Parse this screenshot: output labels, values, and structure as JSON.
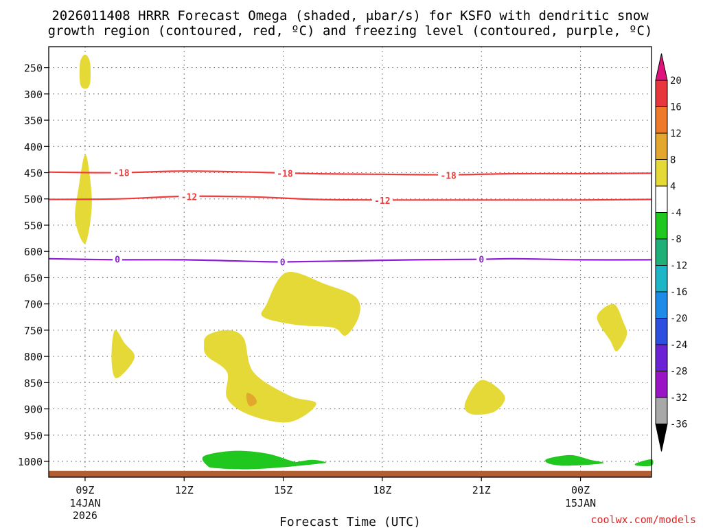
{
  "chart_data": {
    "type": "time-height-section",
    "title_line1": "2026011408 HRRR Forecast Omega (shaded, μbar/s) for KSFO with dendritic snow",
    "title_line2": "growth region (contoured, red, ºC) and freezing level (contoured, purple, ºC)",
    "xlabel": "Forecast Time (UTC)",
    "credit": "coolwx.com/models",
    "y_axis": {
      "range": [
        1030,
        210
      ],
      "ticks": [
        250,
        300,
        350,
        400,
        450,
        500,
        550,
        600,
        650,
        700,
        750,
        800,
        850,
        900,
        950,
        1000
      ],
      "tick_labels": [
        "250",
        "300",
        "350",
        "400",
        "450",
        "500",
        "550",
        "600",
        "650",
        "700",
        "750",
        "800",
        "850",
        "900",
        "950",
        "1000"
      ]
    },
    "x_axis": {
      "range_hours": [
        7.9,
        26.15
      ],
      "ticks": [
        {
          "h": 9,
          "l1": "09Z",
          "l2": "14JAN",
          "l3": "2026"
        },
        {
          "h": 12,
          "l1": "12Z",
          "l2": "",
          "l3": ""
        },
        {
          "h": 15,
          "l1": "15Z",
          "l2": "",
          "l3": ""
        },
        {
          "h": 18,
          "l1": "18Z",
          "l2": "",
          "l3": ""
        },
        {
          "h": 21,
          "l1": "21Z",
          "l2": "",
          "l3": ""
        },
        {
          "h": 24,
          "l1": "00Z",
          "l2": "15JAN",
          "l3": ""
        }
      ]
    },
    "colorbar": {
      "labels": [
        "20",
        "16",
        "12",
        "8",
        "4",
        "-4",
        "-8",
        "-12",
        "-16",
        "-20",
        "-24",
        "-28",
        "-32",
        "-36"
      ],
      "bins": [
        {
          "from": 16,
          "to": 20,
          "color": "#e8373c"
        },
        {
          "from": 12,
          "to": 16,
          "color": "#ec7a2a"
        },
        {
          "from": 8,
          "to": 12,
          "color": "#e3a72d"
        },
        {
          "from": 4,
          "to": 8,
          "color": "#e5d937"
        },
        {
          "from": -4,
          "to": 4,
          "color": "#ffffff"
        },
        {
          "from": -8,
          "to": -4,
          "color": "#1fc71f"
        },
        {
          "from": -12,
          "to": -8,
          "color": "#1fb07a"
        },
        {
          "from": -16,
          "to": -12,
          "color": "#1cb6c6"
        },
        {
          "from": -20,
          "to": -16,
          "color": "#1e8be6"
        },
        {
          "from": -24,
          "to": -20,
          "color": "#2d4fe0"
        },
        {
          "from": -28,
          "to": -24,
          "color": "#6a22d4"
        },
        {
          "from": -32,
          "to": -28,
          "color": "#9a13c6"
        },
        {
          "from": -36,
          "to": -32,
          "color": "#a8a8a8"
        }
      ],
      "top_arrow_color": "#e0117a",
      "bottom_arrow_color": "#000000"
    },
    "contours": [
      {
        "name": "-18",
        "label": "-18",
        "color": "#ee3b3b",
        "points": [
          [
            7.9,
            449
          ],
          [
            10,
            450
          ],
          [
            12,
            447
          ],
          [
            14,
            449
          ],
          [
            16,
            452
          ],
          [
            18,
            453
          ],
          [
            20,
            454
          ],
          [
            22,
            452
          ],
          [
            24,
            452
          ],
          [
            26.15,
            451
          ]
        ],
        "label_at": [
          [
            10.1,
            450
          ],
          [
            15.05,
            451
          ],
          [
            20.0,
            455
          ]
        ]
      },
      {
        "name": "-12",
        "label": "-12",
        "color": "#ee3b3b",
        "points": [
          [
            7.9,
            501
          ],
          [
            10,
            500
          ],
          [
            12,
            495
          ],
          [
            14,
            496
          ],
          [
            16,
            501
          ],
          [
            18,
            502
          ],
          [
            20,
            502
          ],
          [
            22,
            502
          ],
          [
            24,
            502
          ],
          [
            26.15,
            501
          ]
        ],
        "label_at": [
          [
            12.15,
            496
          ],
          [
            18.0,
            503
          ]
        ]
      },
      {
        "name": "0",
        "label": "0",
        "color": "#8b1fd1",
        "points": [
          [
            7.9,
            614
          ],
          [
            10,
            616
          ],
          [
            12,
            616
          ],
          [
            14,
            619
          ],
          [
            15,
            620
          ],
          [
            17,
            618
          ],
          [
            19,
            616
          ],
          [
            21,
            615
          ],
          [
            22,
            614
          ],
          [
            24,
            616
          ],
          [
            26.15,
            616
          ]
        ],
        "label_at": [
          [
            9.98,
            615
          ],
          [
            14.98,
            620
          ],
          [
            21.0,
            615
          ]
        ]
      }
    ],
    "shaded_regions": [
      {
        "name": "omega-4-8",
        "color": "#e5d937",
        "points": [
          [
            9.0,
            225
          ],
          [
            9.15,
            240
          ],
          [
            9.15,
            280
          ],
          [
            9.0,
            290
          ],
          [
            8.85,
            280
          ],
          [
            8.85,
            240
          ]
        ]
      },
      {
        "name": "omega-4-8",
        "color": "#e5d937",
        "points": [
          [
            9.0,
            415
          ],
          [
            9.15,
            460
          ],
          [
            9.2,
            520
          ],
          [
            9.0,
            585
          ],
          [
            8.7,
            540
          ],
          [
            8.8,
            480
          ]
        ]
      },
      {
        "name": "omega-4-8",
        "color": "#e5d937",
        "points": [
          [
            9.9,
            750
          ],
          [
            10.2,
            775
          ],
          [
            10.5,
            800
          ],
          [
            10.2,
            830
          ],
          [
            9.9,
            840
          ],
          [
            9.8,
            800
          ]
        ]
      },
      {
        "name": "omega-4-8",
        "color": "#e5d937",
        "points": [
          [
            12.7,
            760
          ],
          [
            13.3,
            750
          ],
          [
            13.8,
            765
          ],
          [
            14.1,
            830
          ],
          [
            15.2,
            875
          ],
          [
            16.0,
            890
          ],
          [
            15.2,
            925
          ],
          [
            14.0,
            912
          ],
          [
            13.3,
            880
          ],
          [
            13.3,
            830
          ],
          [
            12.7,
            800
          ],
          [
            12.6,
            780
          ]
        ]
      },
      {
        "name": "omega-4-8",
        "color": "#e5d937",
        "points": [
          [
            14.5,
            700
          ],
          [
            15.1,
            640
          ],
          [
            16.3,
            663
          ],
          [
            17.2,
            687
          ],
          [
            17.3,
            722
          ],
          [
            16.9,
            760
          ],
          [
            16.5,
            745
          ],
          [
            15.4,
            740
          ],
          [
            14.4,
            725
          ]
        ]
      },
      {
        "name": "omega-4-8",
        "color": "#e5d937",
        "points": [
          [
            20.5,
            890
          ],
          [
            21.0,
            845
          ],
          [
            21.7,
            875
          ],
          [
            21.4,
            905
          ],
          [
            20.7,
            910
          ]
        ]
      },
      {
        "name": "omega-4-8",
        "color": "#e5d937",
        "points": [
          [
            24.5,
            725
          ],
          [
            25.0,
            700
          ],
          [
            25.3,
            735
          ],
          [
            25.4,
            760
          ],
          [
            25.1,
            790
          ],
          [
            24.9,
            770
          ]
        ]
      },
      {
        "name": "omega-8-12",
        "color": "#e3a72d",
        "points": [
          [
            13.9,
            870
          ],
          [
            14.1,
            875
          ],
          [
            14.2,
            888
          ],
          [
            14.0,
            895
          ],
          [
            13.9,
            885
          ]
        ]
      },
      {
        "name": "omega-neg4-neg8",
        "color": "#1fc71f",
        "points": [
          [
            12.6,
            990
          ],
          [
            13.5,
            980
          ],
          [
            14.5,
            985
          ],
          [
            15.3,
            1000
          ],
          [
            15.5,
            1000
          ],
          [
            15.9,
            997
          ],
          [
            16.3,
            1002
          ],
          [
            16.0,
            1005
          ],
          [
            15.2,
            1010
          ],
          [
            14.0,
            1015
          ],
          [
            13.0,
            1013
          ],
          [
            12.7,
            1008
          ]
        ]
      },
      {
        "name": "omega-neg4-neg8",
        "color": "#1fc71f",
        "points": [
          [
            23.0,
            995
          ],
          [
            23.7,
            988
          ],
          [
            24.3,
            997
          ],
          [
            24.7,
            1003
          ],
          [
            24.1,
            1007
          ],
          [
            23.4,
            1008
          ],
          [
            23.0,
            1003
          ]
        ]
      },
      {
        "name": "omega-neg4-neg8",
        "color": "#1fc71f",
        "points": [
          [
            25.7,
            1003
          ],
          [
            26.15,
            996
          ],
          [
            26.15,
            1008
          ],
          [
            25.7,
            1008
          ]
        ]
      }
    ],
    "ground_band": {
      "color": "#b15e32",
      "top": 1018,
      "bottom": 1030
    }
  }
}
